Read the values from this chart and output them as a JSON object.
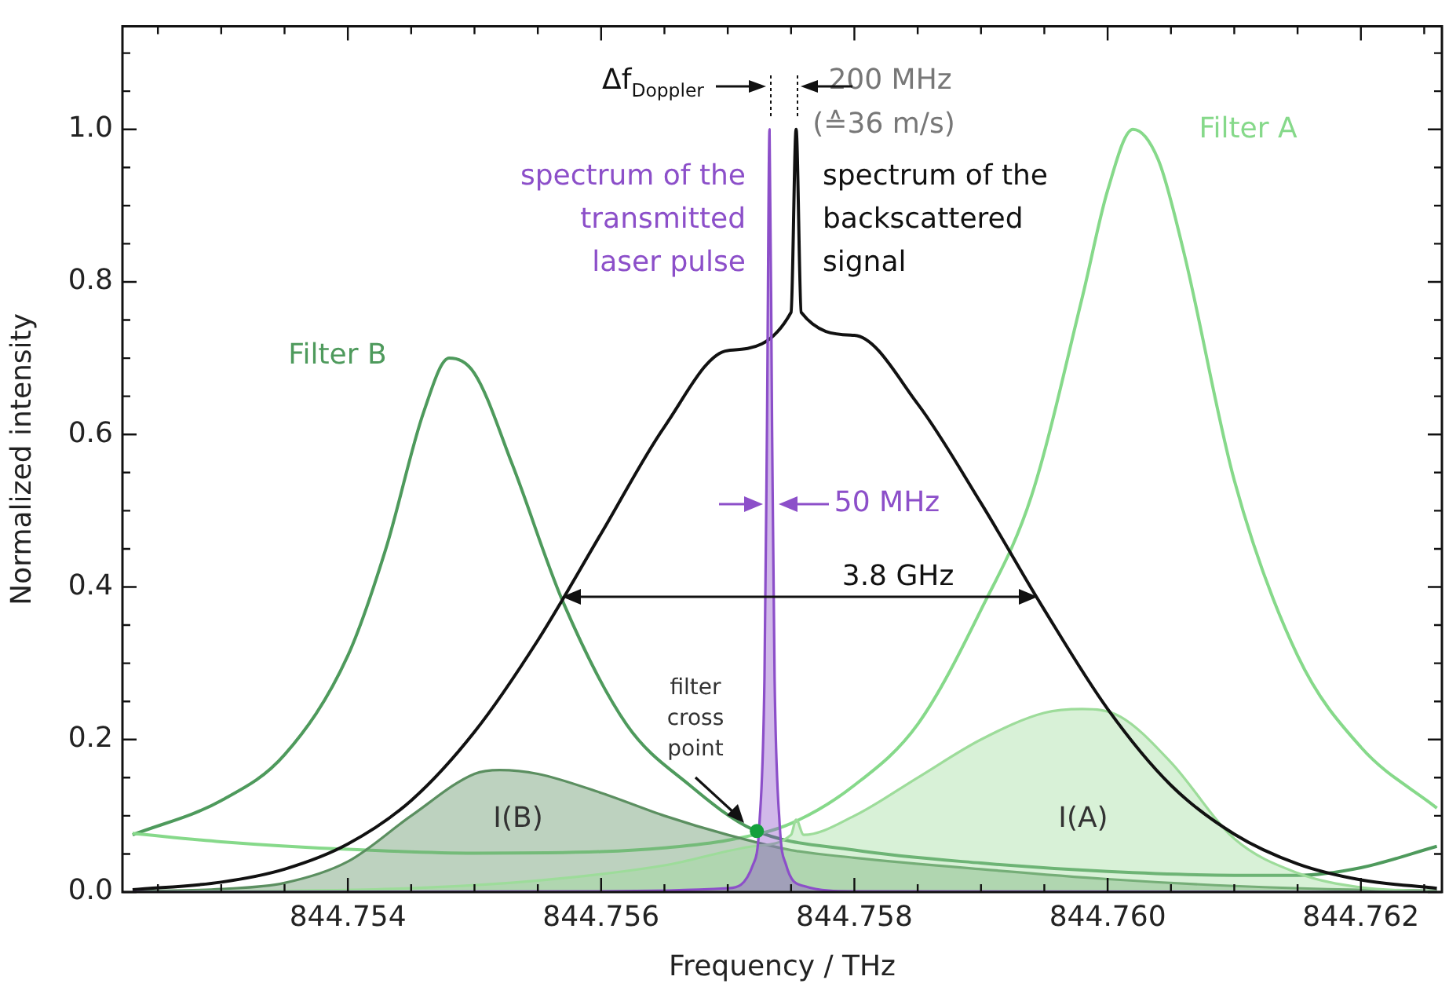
{
  "chart_data": {
    "type": "line",
    "xlabel": "Frequency / THz",
    "ylabel": "Normalized intensity",
    "xlim": [
      844.75222,
      844.76264
    ],
    "ylim": [
      0,
      1.135
    ],
    "xticks": [
      {
        "value": 844.7525,
        "label": null
      },
      {
        "value": 844.753,
        "label": null
      },
      {
        "value": 844.7535,
        "label": null
      },
      {
        "value": 844.754,
        "label": "844.754"
      },
      {
        "value": 844.7545,
        "label": null
      },
      {
        "value": 844.755,
        "label": null
      },
      {
        "value": 844.7555,
        "label": null
      },
      {
        "value": 844.756,
        "label": "844.756"
      },
      {
        "value": 844.7565,
        "label": null
      },
      {
        "value": 844.757,
        "label": null
      },
      {
        "value": 844.7575,
        "label": null
      },
      {
        "value": 844.758,
        "label": "844.758"
      },
      {
        "value": 844.7585,
        "label": null
      },
      {
        "value": 844.759,
        "label": null
      },
      {
        "value": 844.7595,
        "label": null
      },
      {
        "value": 844.76,
        "label": "844.760"
      },
      {
        "value": 844.7605,
        "label": null
      },
      {
        "value": 844.761,
        "label": null
      },
      {
        "value": 844.7615,
        "label": null
      },
      {
        "value": 844.762,
        "label": "844.762"
      },
      {
        "value": 844.7625,
        "label": null
      }
    ],
    "yticks": [
      {
        "value": 0,
        "label": "0.0"
      },
      {
        "value": 0.05,
        "label": null
      },
      {
        "value": 0.1,
        "label": null
      },
      {
        "value": 0.15,
        "label": null
      },
      {
        "value": 0.2,
        "label": "0.2"
      },
      {
        "value": 0.25,
        "label": null
      },
      {
        "value": 0.3,
        "label": null
      },
      {
        "value": 0.35,
        "label": null
      },
      {
        "value": 0.4,
        "label": "0.4"
      },
      {
        "value": 0.45,
        "label": null
      },
      {
        "value": 0.5,
        "label": null
      },
      {
        "value": 0.55,
        "label": null
      },
      {
        "value": 0.6,
        "label": "0.6"
      },
      {
        "value": 0.65,
        "label": null
      },
      {
        "value": 0.7,
        "label": null
      },
      {
        "value": 0.75,
        "label": null
      },
      {
        "value": 0.8,
        "label": "0.8"
      },
      {
        "value": 0.85,
        "label": null
      },
      {
        "value": 0.9,
        "label": null
      },
      {
        "value": 0.95,
        "label": null
      },
      {
        "value": 1.0,
        "label": "1.0"
      },
      {
        "value": 1.05,
        "label": null
      },
      {
        "value": 1.1,
        "label": null
      }
    ],
    "series": [
      {
        "name": "Filter B",
        "type": "line",
        "color": "#4e9a5c",
        "x": [
          844.7523,
          844.753,
          844.7535,
          844.754,
          844.7543,
          844.7546,
          844.7548,
          844.755,
          844.7553,
          844.7557,
          844.7562,
          844.7567,
          844.7572,
          844.758,
          844.759,
          844.76,
          844.761,
          844.7615,
          844.762,
          844.7626
        ],
        "values": [
          0.075,
          0.12,
          0.18,
          0.31,
          0.45,
          0.63,
          0.7,
          0.68,
          0.56,
          0.38,
          0.22,
          0.14,
          0.082,
          0.055,
          0.038,
          0.027,
          0.022,
          0.022,
          0.032,
          0.06
        ]
      },
      {
        "name": "Filter A",
        "type": "line",
        "color": "#86d98a",
        "x": [
          844.7523,
          844.753,
          844.754,
          844.755,
          844.756,
          844.7565,
          844.757,
          844.7575,
          844.758,
          844.7585,
          844.759,
          844.7594,
          844.7598,
          844.76,
          844.7602,
          844.7604,
          844.7606,
          844.761,
          844.7615,
          844.762,
          844.7626
        ],
        "values": [
          0.077,
          0.066,
          0.056,
          0.051,
          0.053,
          0.058,
          0.068,
          0.09,
          0.14,
          0.22,
          0.37,
          0.52,
          0.78,
          0.92,
          1.0,
          0.96,
          0.84,
          0.54,
          0.31,
          0.19,
          0.11
        ]
      },
      {
        "name": "I(B)",
        "type": "area",
        "color": "#5b8f60",
        "x": [
          844.7523,
          844.753,
          844.7535,
          844.754,
          844.7545,
          844.755,
          844.7552,
          844.7555,
          844.756,
          844.7565,
          844.757,
          844.7575,
          844.758,
          844.759,
          844.76,
          844.761,
          844.762,
          844.7626
        ],
        "values": [
          0.001,
          0.004,
          0.012,
          0.04,
          0.1,
          0.155,
          0.16,
          0.155,
          0.13,
          0.1,
          0.075,
          0.055,
          0.045,
          0.03,
          0.017,
          0.008,
          0.003,
          0.002
        ]
      },
      {
        "name": "I(A)",
        "type": "area",
        "color": "#9ddc9a",
        "x": [
          844.7523,
          844.7545,
          844.7555,
          844.7565,
          844.7572,
          844.7575,
          844.75754,
          844.7576,
          844.758,
          844.7585,
          844.759,
          844.7595,
          844.7598,
          844.7601,
          844.7605,
          844.761,
          844.7615,
          844.762,
          844.7626
        ],
        "values": [
          0,
          0.005,
          0.015,
          0.035,
          0.06,
          0.075,
          0.095,
          0.075,
          0.1,
          0.15,
          0.2,
          0.235,
          0.24,
          0.23,
          0.17,
          0.07,
          0.025,
          0.006,
          0.001
        ]
      },
      {
        "name": "spectrum of the\nbackscattered\nsignal",
        "type": "line",
        "color": "#111111",
        "x": [
          844.7523,
          844.753,
          844.7535,
          844.754,
          844.7545,
          844.755,
          844.7555,
          844.756,
          844.7565,
          844.757,
          844.7575,
          844.75754,
          844.75758,
          844.758,
          844.7585,
          844.759,
          844.7595,
          844.76,
          844.7605,
          844.761,
          844.7615,
          844.762,
          844.7626
        ],
        "values": [
          0.003,
          0.013,
          0.03,
          0.063,
          0.12,
          0.21,
          0.33,
          0.47,
          0.61,
          0.71,
          0.76,
          1.0,
          0.76,
          0.73,
          0.64,
          0.51,
          0.37,
          0.24,
          0.14,
          0.076,
          0.037,
          0.016,
          0.005
        ]
      },
      {
        "name": "spectrum of the\ntransmitted\nlaser pulse",
        "type": "area",
        "color": "#8c4fc9",
        "x": [
          844.7523,
          844.756,
          844.757,
          844.7572,
          844.75725,
          844.75729,
          844.75731,
          844.75733,
          844.75735,
          844.75737,
          844.75741,
          844.75746,
          844.7576,
          844.758,
          844.7626
        ],
        "values": [
          0,
          0.001,
          0.005,
          0.036,
          0.089,
          0.28,
          0.61,
          1.0,
          0.61,
          0.28,
          0.089,
          0.036,
          0.008,
          0.001,
          0
        ]
      },
      {
        "type": "scatter",
        "color": "#14a03c",
        "x": [
          844.75723
        ],
        "values": [
          0.08
        ]
      }
    ],
    "annotations": [
      "Δf$_{Doppler}$",
      "200 MHz",
      "(≙36 m/s)",
      "50 MHz",
      "3.8 GHz",
      "filter\ncross\npoint"
    ]
  }
}
